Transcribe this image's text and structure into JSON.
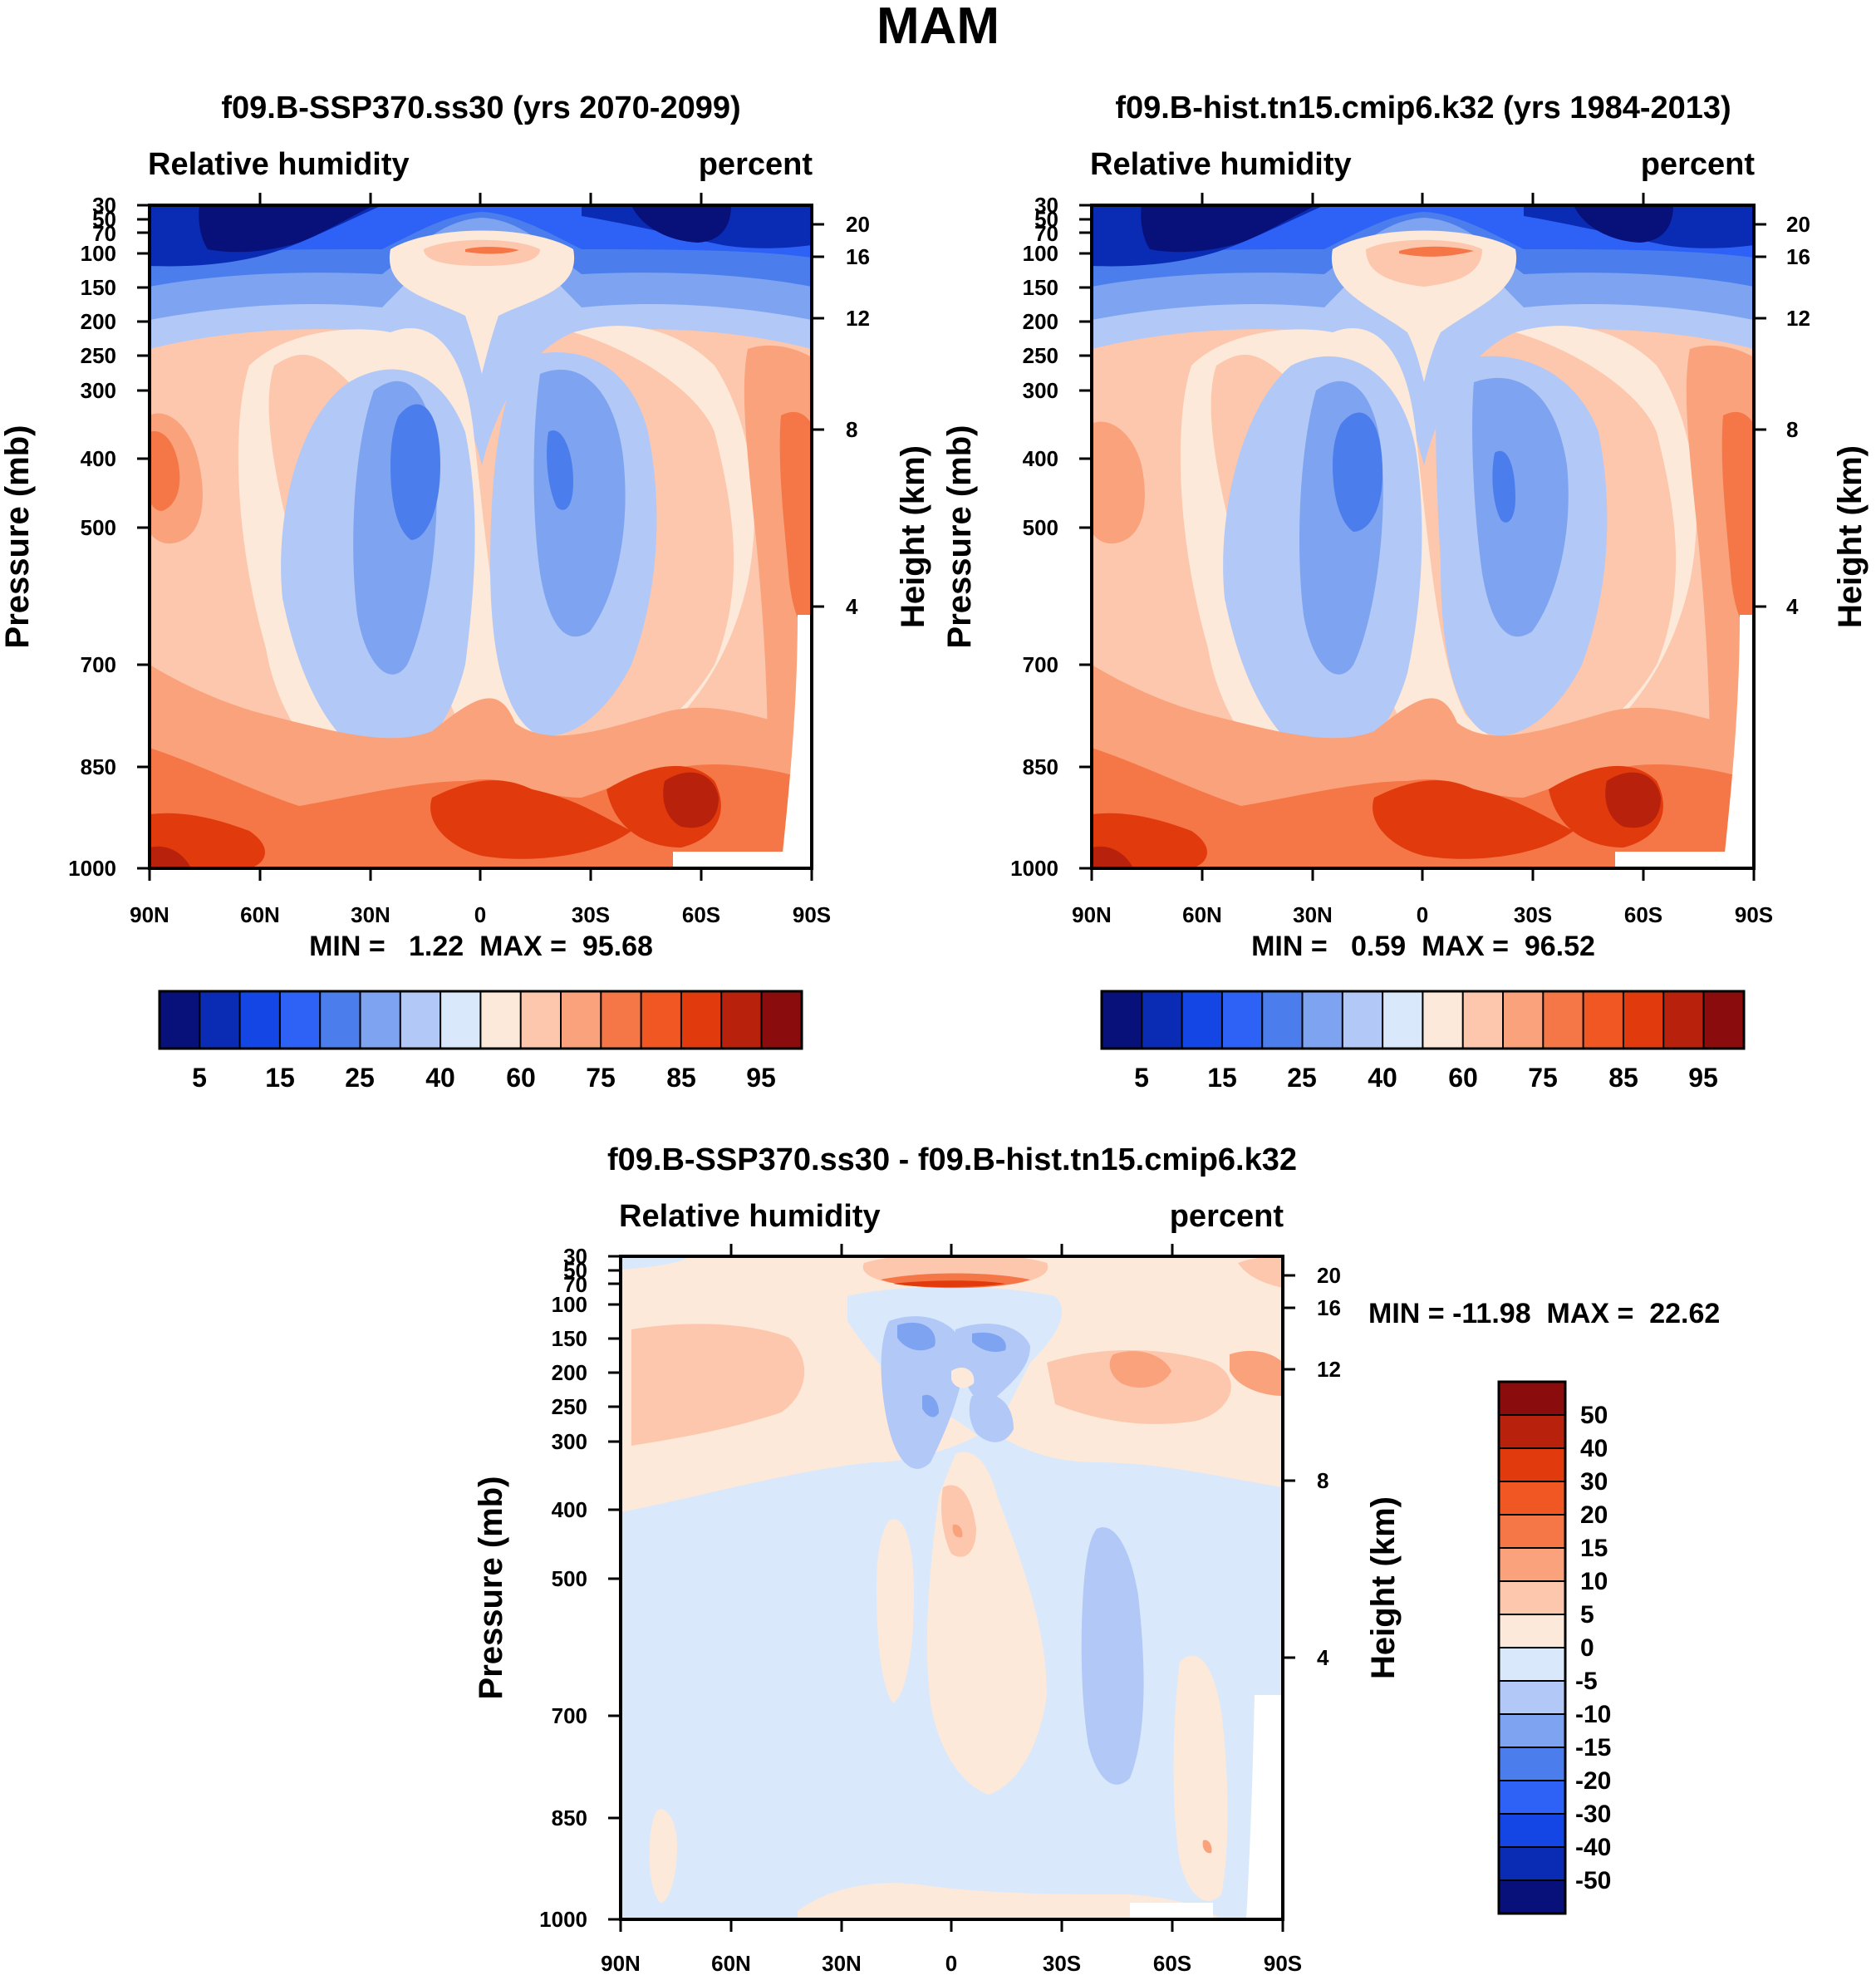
{
  "figure": {
    "title": "MAM"
  },
  "chart_data": [
    {
      "type": "heatmap",
      "title": "f09.B-SSP370.ss30 (yrs 2070-2099)",
      "left_label": "Relative humidity",
      "right_label": "percent",
      "ylabel": "Pressure (mb)",
      "y2label": "Height (km)",
      "x_ticks": [
        "90N",
        "60N",
        "30N",
        "0",
        "30S",
        "60S",
        "90S"
      ],
      "y_ticks": [
        30,
        50,
        70,
        100,
        150,
        200,
        250,
        300,
        400,
        500,
        700,
        850,
        1000
      ],
      "height_ticks": [
        20,
        16,
        12,
        8,
        4
      ],
      "stats": "MIN =   1.22  MAX =  95.68",
      "palette": [
        "#08107a",
        "#0a2bb4",
        "#1446e6",
        "#2e62f6",
        "#4b7eec",
        "#7ea3f0",
        "#b2c8f6",
        "#d9e9fb",
        "#fde9d9",
        "#fcc7ad",
        "#f9a27c",
        "#f57646",
        "#f05722",
        "#e13a0c",
        "#b8210c",
        "#8a0c0c"
      ],
      "levels": [
        "5",
        "15",
        "25",
        "40",
        "60",
        "75",
        "85",
        "95"
      ]
    },
    {
      "type": "heatmap",
      "title": "f09.B-hist.tn15.cmip6.k32 (yrs 1984-2013)",
      "left_label": "Relative humidity",
      "right_label": "percent",
      "ylabel": "Pressure (mb)",
      "y2label": "Height (km)",
      "x_ticks": [
        "90N",
        "60N",
        "30N",
        "0",
        "30S",
        "60S",
        "90S"
      ],
      "y_ticks": [
        30,
        50,
        70,
        100,
        150,
        200,
        250,
        300,
        400,
        500,
        700,
        850,
        1000
      ],
      "height_ticks": [
        20,
        16,
        12,
        8,
        4
      ],
      "stats": "MIN =   0.59  MAX =  96.52",
      "palette": [
        "#08107a",
        "#0a2bb4",
        "#1446e6",
        "#2e62f6",
        "#4b7eec",
        "#7ea3f0",
        "#b2c8f6",
        "#d9e9fb",
        "#fde9d9",
        "#fcc7ad",
        "#f9a27c",
        "#f57646",
        "#f05722",
        "#e13a0c",
        "#b8210c",
        "#8a0c0c"
      ],
      "levels": [
        "5",
        "15",
        "25",
        "40",
        "60",
        "75",
        "85",
        "95"
      ]
    },
    {
      "type": "heatmap",
      "title": "f09.B-SSP370.ss30 - f09.B-hist.tn15.cmip6.k32",
      "left_label": "Relative humidity",
      "right_label": "percent",
      "ylabel": "Pressure (mb)",
      "y2label": "Height (km)",
      "x_ticks": [
        "90N",
        "60N",
        "30N",
        "0",
        "30S",
        "60S",
        "90S"
      ],
      "y_ticks": [
        30,
        50,
        70,
        100,
        150,
        200,
        250,
        300,
        400,
        500,
        700,
        850,
        1000
      ],
      "height_ticks": [
        20,
        16,
        12,
        8,
        4
      ],
      "stats": "MIN = -11.98  MAX =  22.62",
      "palette": [
        "#8a0c0c",
        "#b8210c",
        "#e13a0c",
        "#f05722",
        "#f57646",
        "#f9a27c",
        "#fcc7ad",
        "#fde9d9",
        "#d9e9fb",
        "#b2c8f6",
        "#7ea3f0",
        "#4b7eec",
        "#2e62f6",
        "#1446e6",
        "#0a2bb4",
        "#08107a"
      ],
      "levels": [
        "50",
        "40",
        "30",
        "20",
        "15",
        "10",
        "5",
        "0",
        "-5",
        "-10",
        "-15",
        "-20",
        "-30",
        "-40",
        "-50"
      ]
    }
  ]
}
